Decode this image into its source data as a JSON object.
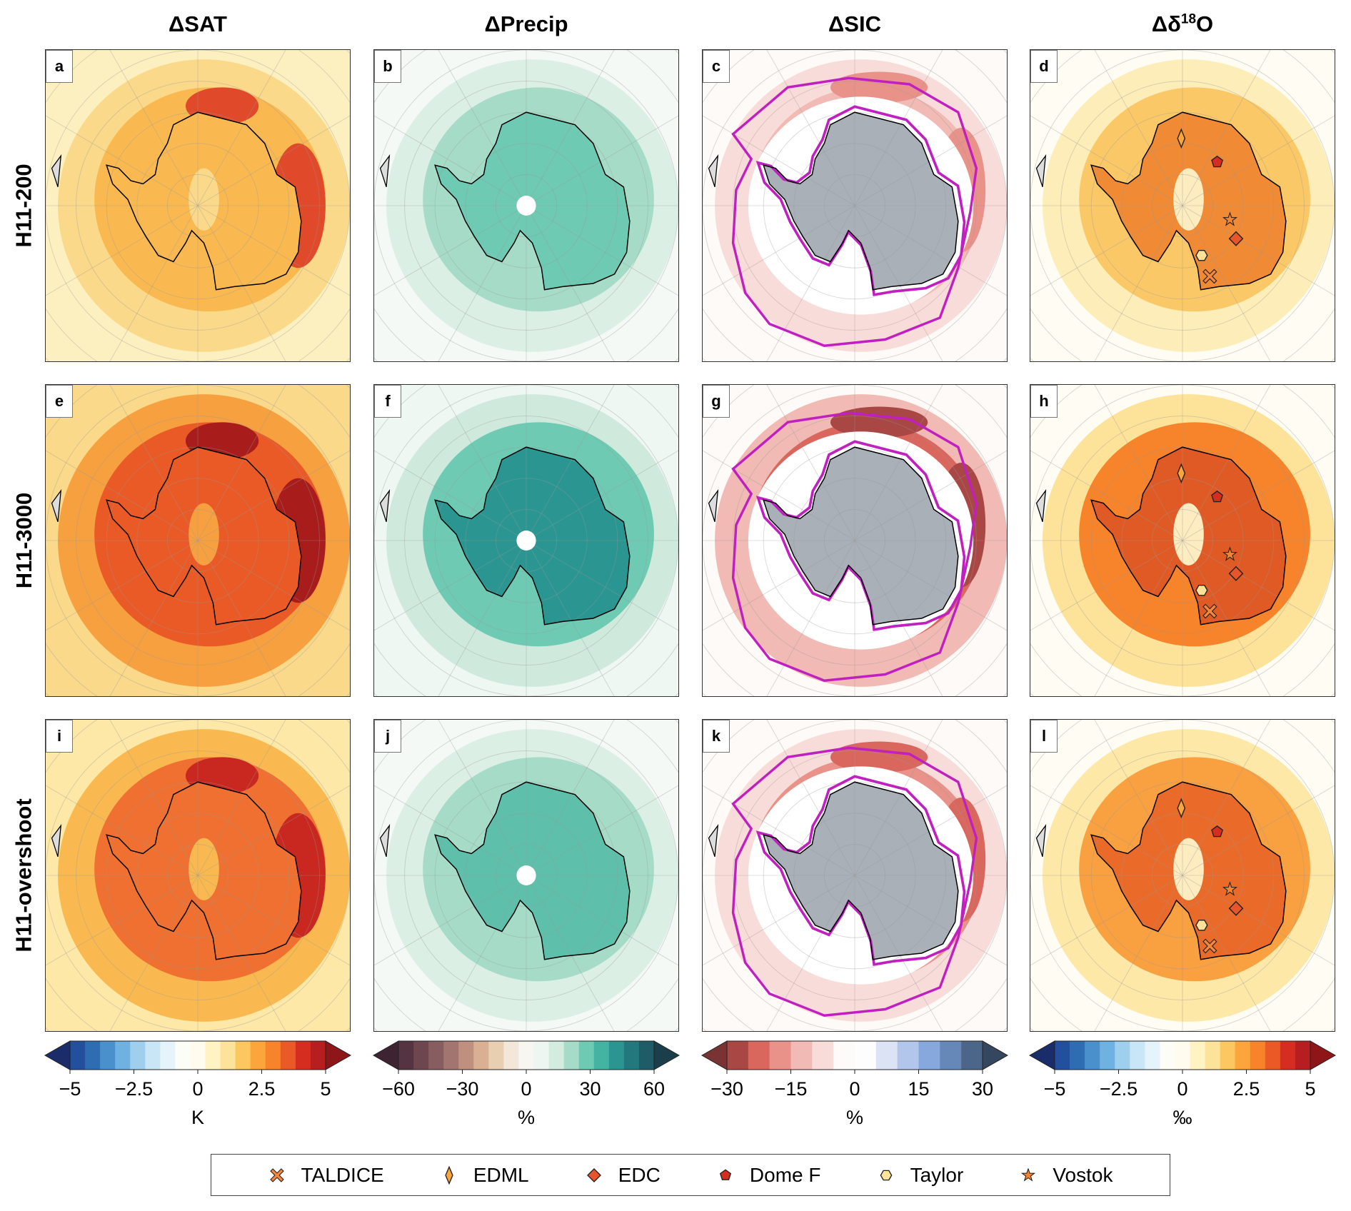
{
  "columns": [
    {
      "title": "ΔSAT"
    },
    {
      "title": "ΔPrecip"
    },
    {
      "title": "ΔSIC"
    },
    {
      "title_prefix": "Δδ",
      "title_sup": "18",
      "title_suffix": "O"
    }
  ],
  "rows": [
    "H11-200",
    "H11-3000",
    "H11-overshoot"
  ],
  "panels": [
    "a",
    "b",
    "c",
    "d",
    "e",
    "f",
    "g",
    "h",
    "i",
    "j",
    "k",
    "l"
  ],
  "colorbars": [
    {
      "ticks": [
        -5,
        -2.5,
        0,
        2.5,
        5
      ],
      "tick_labels": [
        "−5",
        "−2.5",
        "0",
        "2.5",
        "5"
      ],
      "unit": "K",
      "colors": [
        "#1b2c6b",
        "#23509c",
        "#2f6db3",
        "#4a90cc",
        "#6fb1e0",
        "#9ed0ee",
        "#c8e6f5",
        "#e5f3fa",
        "#fdfdf8",
        "#fffbee",
        "#fff3c4",
        "#fde29a",
        "#fcc760",
        "#fba53a",
        "#f7832b",
        "#ea5a26",
        "#d52e21",
        "#b61e1f",
        "#8e1619"
      ]
    },
    {
      "ticks": [
        -60,
        -30,
        0,
        30,
        60
      ],
      "tick_labels": [
        "−60",
        "−30",
        "0",
        "30",
        "60"
      ],
      "unit": "%",
      "colors": [
        "#3e2433",
        "#563341",
        "#6e4650",
        "#875d5f",
        "#a37570",
        "#bf9080",
        "#d9b094",
        "#e9cfb2",
        "#f2e7d8",
        "#f7f6f1",
        "#edf6f0",
        "#d3ecdf",
        "#a6dcc7",
        "#6fcab3",
        "#44b3a2",
        "#2b9691",
        "#22787c",
        "#1f5c68",
        "#1a3f4b"
      ]
    },
    {
      "ticks": [
        -30,
        -15,
        0,
        15,
        30
      ],
      "tick_labels": [
        "−30",
        "−15",
        "0",
        "15",
        "30"
      ],
      "unit": "%",
      "colors": [
        "#7a3333",
        "#a84744",
        "#d9675d",
        "#e9928a",
        "#f1bab4",
        "#f8dcd9",
        "#fdfbfa",
        "#fdfdfd",
        "#dbe3f5",
        "#b1c6ea",
        "#86a8dc",
        "#6588b9",
        "#4c6689",
        "#34475e"
      ]
    },
    {
      "ticks": [
        -5,
        -2.5,
        0,
        2.5,
        5
      ],
      "tick_labels": [
        "−5",
        "−2.5",
        "0",
        "2.5",
        "5"
      ],
      "unit": "‰",
      "colors": [
        "#1b2c6b",
        "#23509c",
        "#2f6db3",
        "#4a90cc",
        "#6fb1e0",
        "#9ed0ee",
        "#c8e6f5",
        "#e5f3fa",
        "#fdfdf8",
        "#fffbee",
        "#fff3c4",
        "#fde29a",
        "#fcc760",
        "#fba53a",
        "#f7832b",
        "#ea5a26",
        "#d52e21",
        "#b61e1f",
        "#8e1619"
      ]
    }
  ],
  "legend": [
    {
      "name": "TALDICE",
      "marker": "cross",
      "color": "#f5863a"
    },
    {
      "name": "EDML",
      "marker": "thin-diamond",
      "color": "#fba53a"
    },
    {
      "name": "EDC",
      "marker": "diamond",
      "color": "#e8552a"
    },
    {
      "name": "Dome F",
      "marker": "pentagon",
      "color": "#d52e21"
    },
    {
      "name": "Taylor",
      "marker": "hexagon",
      "color": "#fde29a"
    },
    {
      "name": "Vostok",
      "marker": "star",
      "color": "#f7832b"
    }
  ],
  "colors": {
    "sic_contour": "#c020c0",
    "land_mask": "#a9b0b8"
  }
}
